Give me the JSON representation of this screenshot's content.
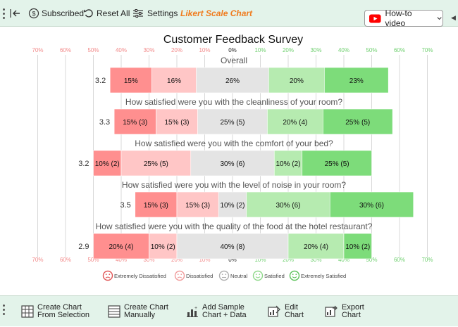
{
  "toolbar": {
    "subscribed_label": "Subscribed",
    "reset_label": "Reset All",
    "settings_label": "Settings",
    "chart_name": "Likert Scale Chart",
    "video_label": "How-to video"
  },
  "bottom_toolbar": {
    "create_selection": [
      "Create Chart",
      "From Selection"
    ],
    "create_manual": [
      "Create Chart",
      "Manually"
    ],
    "add_sample": [
      "Add Sample",
      "Chart + Data"
    ],
    "edit_chart": [
      "Edit",
      "Chart"
    ],
    "export_chart": [
      "Export",
      "Chart"
    ]
  },
  "colors": {
    "accent": "#f07b1d",
    "toolbar_bg": "#e3f3ea",
    "youtube": "#ff0000",
    "extremely_dissatisfied": "#ff8f8f",
    "dissatisfied": "#ffc6c6",
    "neutral": "#e4e4e4",
    "satisfied": "#b6ebb0",
    "extremely_satisfied": "#7ddc7a"
  },
  "chart_data": {
    "type": "bar",
    "subtype": "diverging-stacked-bar",
    "title": "Customer Feedback Survey",
    "tick_labels": [
      "70%",
      "60%",
      "50%",
      "40%",
      "30%",
      "20%",
      "10%",
      "0%",
      "10%",
      "20%",
      "30%",
      "40%",
      "50%",
      "60%",
      "70%"
    ],
    "xlim": [
      -70,
      70
    ],
    "grid": true,
    "legend_position": "bottom",
    "categories": [
      "Extremely Dissatisfied",
      "Dissatisfied",
      "Neutral",
      "Satisfied",
      "Extremely Satisfied"
    ],
    "items": [
      {
        "question": "Overall",
        "mean": "3.2",
        "values": [
          15,
          16,
          26,
          20,
          23
        ],
        "labels": [
          "15%",
          "16%",
          "26%",
          "20%",
          "23%"
        ]
      },
      {
        "question": "How satisfied were you with the cleanliness of your room?",
        "mean": "3.3",
        "values": [
          15,
          15,
          25,
          20,
          25
        ],
        "labels": [
          "15% (3)",
          "15% (3)",
          "25% (5)",
          "20% (4)",
          "25% (5)"
        ]
      },
      {
        "question": "How satisfied were you with the comfort of your bed?",
        "mean": "3.2",
        "values": [
          10,
          25,
          30,
          10,
          25
        ],
        "labels": [
          "10% (2)",
          "25% (5)",
          "30% (6)",
          "10% (2)",
          "25% (5)"
        ]
      },
      {
        "question": "How satisfied were you with the level of noise in your room?",
        "mean": "3.5",
        "values": [
          15,
          15,
          10,
          30,
          30
        ],
        "labels": [
          "15% (3)",
          "15% (3)",
          "10% (2)",
          "30% (6)",
          "30% (6)"
        ]
      },
      {
        "question": "How satisfied were you with the quality of the food at the hotel restaurant?",
        "mean": "2.9",
        "values": [
          20,
          10,
          40,
          20,
          10
        ],
        "labels": [
          "20% (4)",
          "10% (2)",
          "40% (8)",
          "20% (4)",
          "10% (2)"
        ]
      }
    ]
  }
}
